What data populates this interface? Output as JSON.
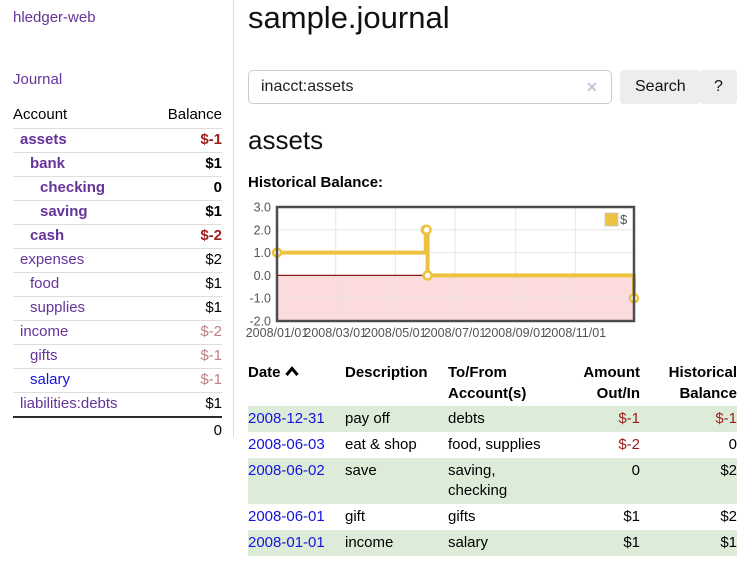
{
  "app": {
    "brand": "hledger-web",
    "nav_journal": "Journal"
  },
  "sidebar": {
    "headers": {
      "account": "Account",
      "balance": "Balance"
    },
    "accounts": [
      {
        "name": "assets",
        "balance": "$-1",
        "level": 1,
        "matched": true,
        "balance_class": "neg-strong"
      },
      {
        "name": "bank",
        "balance": "$1",
        "level": 2,
        "matched": true,
        "balance_class": ""
      },
      {
        "name": "checking",
        "balance": "0",
        "level": 3,
        "matched": true,
        "balance_class": ""
      },
      {
        "name": "saving",
        "balance": "$1",
        "level": 3,
        "matched": true,
        "balance_class": ""
      },
      {
        "name": "cash",
        "balance": "$-2",
        "level": 2,
        "matched": true,
        "balance_class": "neg-strong"
      },
      {
        "name": "expenses",
        "balance": "$2",
        "level": 1,
        "matched": false,
        "balance_class": ""
      },
      {
        "name": "food",
        "balance": "$1",
        "level": 2,
        "matched": false,
        "balance_class": ""
      },
      {
        "name": "supplies",
        "balance": "$1",
        "level": 2,
        "matched": false,
        "balance_class": ""
      },
      {
        "name": "income",
        "balance": "$-2",
        "level": 1,
        "matched": false,
        "balance_class": "neg-faded"
      },
      {
        "name": "gifts",
        "balance": "$-1",
        "level": 2,
        "matched": false,
        "balance_class": "neg-faded"
      },
      {
        "name": "salary",
        "balance": "$-1",
        "level": 2,
        "matched": false,
        "balance_class": "neg-faded",
        "link_style": "blue"
      },
      {
        "name": "liabilities:debts",
        "balance": "$1",
        "level": 1,
        "matched": false,
        "balance_class": ""
      }
    ],
    "total": "0"
  },
  "main": {
    "title": "sample.journal",
    "search": {
      "value": "inacct:assets",
      "clear_glyph": "✕",
      "search_button": "Search",
      "help_button": "?"
    },
    "section_title": "assets",
    "chart_label": "Historical Balance:"
  },
  "chart_data": {
    "type": "line",
    "step": true,
    "title": "Historical Balance:",
    "series": [
      {
        "name": "$",
        "color": "#edc240",
        "points": [
          [
            "2008-01-01",
            1
          ],
          [
            "2008-06-01",
            2
          ],
          [
            "2008-06-02",
            2
          ],
          [
            "2008-06-03",
            0
          ],
          [
            "2008-12-31",
            -1
          ]
        ]
      }
    ],
    "xlim": [
      "2008-01-01",
      "2008-12-31"
    ],
    "ylim": [
      -2,
      3
    ],
    "y_ticks": [
      3.0,
      2.0,
      1.0,
      0.0,
      -1.0,
      -2.0
    ],
    "x_ticks": [
      "2008/01/01",
      "2008/03/01",
      "2008/05/01",
      "2008/07/01",
      "2008/09/01",
      "2008/11/01"
    ],
    "negative_fill": "#fbdbdb",
    "zero_line_color": "#8b1a1a",
    "grid_color": "#e6e6e6",
    "border_color": "#4d4d4d",
    "tick_label_color": "#545454",
    "legend": {
      "label": "$",
      "position": "top-right"
    }
  },
  "register": {
    "headers": {
      "date": "Date",
      "description": "Description",
      "tofrom": "To/From Account(s)",
      "amount": "Amount Out/In",
      "balance": "Historical Balance"
    },
    "rows": [
      {
        "date": "2008-12-31",
        "description": "pay off",
        "accounts": "debts",
        "amount": "$-1",
        "amount_neg": true,
        "balance": "$-1",
        "balance_neg": true
      },
      {
        "date": "2008-06-03",
        "description": "eat & shop",
        "accounts": "food, supplies",
        "amount": "$-2",
        "amount_neg": true,
        "balance": "0",
        "balance_neg": false
      },
      {
        "date": "2008-06-02",
        "description": "save",
        "accounts": "saving, checking",
        "amount": "0",
        "amount_neg": false,
        "balance": "$2",
        "balance_neg": false
      },
      {
        "date": "2008-06-01",
        "description": "gift",
        "accounts": "gifts",
        "amount": "$1",
        "amount_neg": false,
        "balance": "$2",
        "balance_neg": false
      },
      {
        "date": "2008-01-01",
        "description": "income",
        "accounts": "salary",
        "amount": "$1",
        "amount_neg": false,
        "balance": "$1",
        "balance_neg": false
      }
    ]
  },
  "colors": {
    "link_purple": "#663399",
    "link_blue": "#1414dd",
    "negative_strong": "#9d1d1d",
    "negative_faded": "#c08080",
    "row_green": "#ddecd8",
    "chart_line": "#edc240",
    "chart_negative_area": "#fbdbdb",
    "zero_line": "#8b1a1a"
  }
}
